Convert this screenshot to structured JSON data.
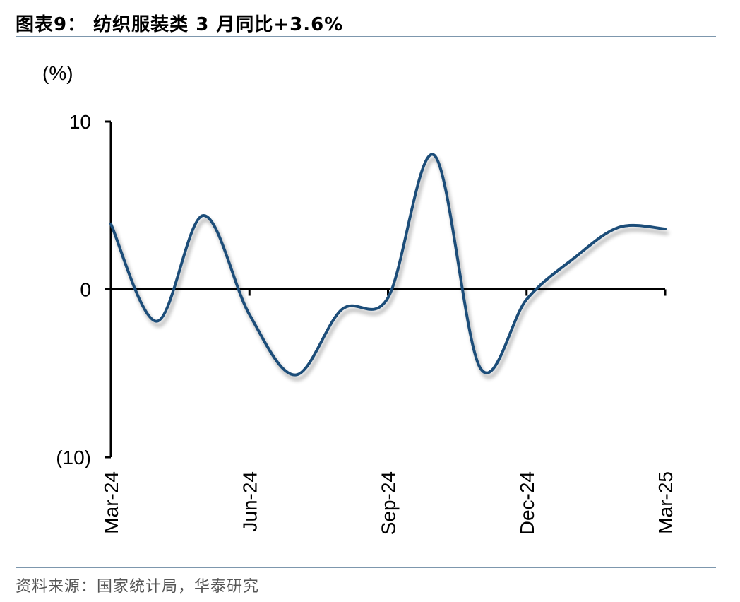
{
  "header": {
    "title": "图表9： 纺织服装类 3 月同比+3.6%"
  },
  "footer": {
    "source": "资料来源：国家统计局，华泰研究"
  },
  "chart_data": {
    "type": "line",
    "title": "纺织服装类 3 月同比+3.6%",
    "unit_label": "(%)",
    "ylim": [
      -10,
      10
    ],
    "y_ticks": [
      {
        "value": 10,
        "label": "10"
      },
      {
        "value": 0,
        "label": "0"
      },
      {
        "value": -10,
        "label": "(10)"
      }
    ],
    "x_tick_labels": [
      "Mar-24",
      "Jun-24",
      "Sep-24",
      "Dec-24",
      "Mar-25"
    ],
    "x": [
      "Mar-24",
      "Apr-24",
      "May-24",
      "Jun-24",
      "Jul-24",
      "Aug-24",
      "Sep-24",
      "Oct-24",
      "Nov-24",
      "Dec-24",
      "Jan-25",
      "Feb-25",
      "Mar-25"
    ],
    "series": [
      {
        "values": [
          3.9,
          -1.9,
          4.4,
          -1.5,
          -5.1,
          -1.2,
          -0.5,
          8.0,
          -4.7,
          -0.6,
          1.8,
          3.7,
          3.6
        ],
        "color": "#1f4e79"
      }
    ],
    "grid": false,
    "legend": "none"
  }
}
